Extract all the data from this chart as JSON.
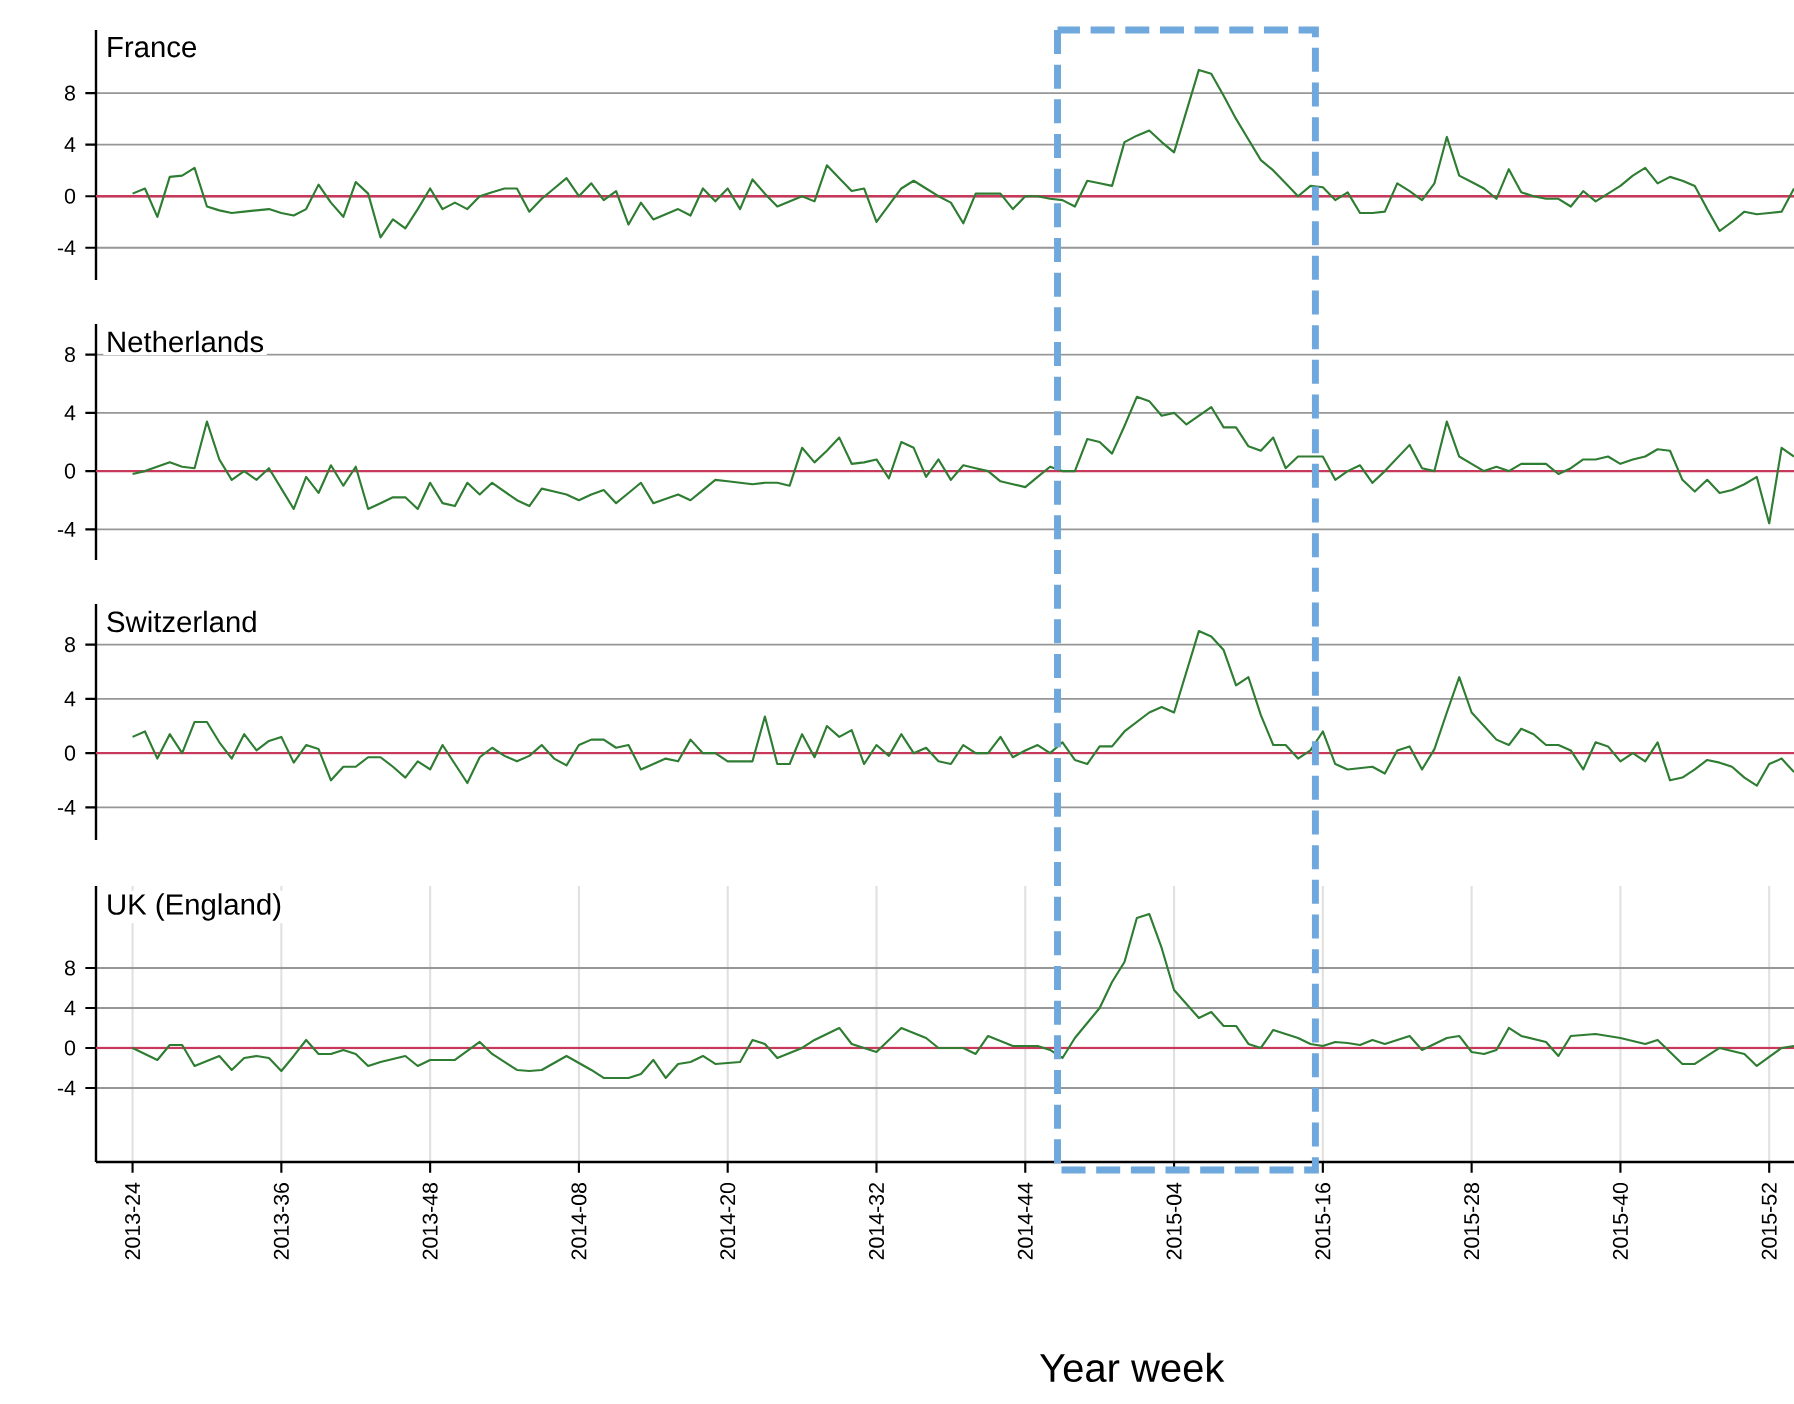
{
  "chart_data": [
    {
      "type": "line",
      "title": "France",
      "ylim": [
        -6.5,
        12.9
      ],
      "yticks": [
        -4,
        0,
        4,
        8
      ],
      "grid": true,
      "tick_labels": "y",
      "categories": [
        "2013-24",
        null,
        null,
        null,
        null,
        null,
        null,
        null,
        null,
        null,
        null,
        null,
        "2013-36",
        null,
        null,
        null,
        null,
        null,
        null,
        null,
        null,
        null,
        null,
        null,
        "2013-48",
        null,
        null,
        null,
        null,
        null,
        null,
        null,
        null,
        null,
        null,
        null,
        "2014-08",
        null,
        null,
        null,
        null,
        null,
        null,
        null,
        null,
        null,
        null,
        null,
        "2014-20",
        null,
        null,
        null,
        null,
        null,
        null,
        null,
        null,
        null,
        null,
        null,
        "2014-32",
        null,
        null,
        null,
        null,
        null,
        null,
        null,
        null,
        null,
        null,
        null,
        "2014-44",
        null,
        null,
        null,
        null,
        null,
        null,
        null,
        null,
        null,
        null,
        null,
        "2015-04",
        null,
        null,
        null,
        null,
        null,
        null,
        null,
        null,
        null,
        null,
        null,
        "2015-16",
        null,
        null,
        null,
        null,
        null,
        null,
        null,
        null,
        null,
        null,
        null,
        "2015-28",
        null,
        null,
        null,
        null,
        null,
        null,
        null,
        null,
        null,
        null,
        null,
        "2015-40",
        null,
        null,
        null,
        null,
        null,
        null,
        null,
        null,
        null,
        null,
        null,
        "2015-52",
        null,
        null
      ],
      "ref_lines": [
        {
          "axis": "y",
          "value": 0,
          "color": "#c8385a"
        }
      ],
      "series": [
        {
          "color": "#2e7d32",
          "values": [
            0.2,
            0.6,
            -1.6,
            1.5,
            1.6,
            2.2,
            -0.8,
            -1.1,
            -1.3,
            -1.2,
            -1.1,
            -1.0,
            -1.3,
            -1.5,
            -1.0,
            0.9,
            -0.5,
            -1.6,
            1.1,
            0.2,
            -3.2,
            -1.8,
            -2.5,
            -1.0,
            0.6,
            -1.0,
            -0.5,
            -1.0,
            0.0,
            0.3,
            0.6,
            0.6,
            -1.2,
            -0.2,
            0.6,
            1.4,
            0.0,
            1.0,
            -0.3,
            0.4,
            -2.2,
            -0.5,
            -1.8,
            -1.4,
            -1.0,
            -1.5,
            0.6,
            -0.4,
            0.6,
            -1.0,
            1.3,
            0.2,
            -0.8,
            -0.4,
            0.0,
            -0.4,
            2.4,
            1.4,
            0.4,
            0.6,
            -2.0,
            -0.7,
            0.6,
            1.2,
            0.6,
            0.0,
            -0.5,
            -2.1,
            0.2,
            0.2,
            0.2,
            -1.0,
            0.0,
            0.0,
            -0.2,
            -0.3,
            -0.8,
            1.2,
            1.0,
            0.8,
            4.2,
            4.7,
            5.1,
            4.2,
            3.4,
            6.6,
            9.8,
            9.5,
            7.8,
            6.0,
            4.4,
            2.8,
            2.0,
            1.0,
            0.0,
            0.8,
            0.7,
            -0.3,
            0.3,
            -1.3,
            -1.3,
            -1.2,
            1.0,
            0.4,
            -0.3,
            1.0,
            4.6,
            1.6,
            1.1,
            0.6,
            -0.2,
            2.1,
            0.3,
            0.0,
            -0.2,
            -0.2,
            -0.8,
            0.4,
            -0.4,
            0.2,
            0.8,
            1.6,
            2.2,
            1.0,
            1.5,
            1.2,
            0.8,
            -1.0,
            -2.7,
            -2.0,
            -1.2,
            -1.4,
            -1.3,
            -1.2,
            0.6
          ]
        }
      ]
    },
    {
      "type": "line",
      "title": "Netherlands",
      "ylim": [
        -6.1,
        10.1
      ],
      "yticks": [
        -4,
        0,
        4,
        8
      ],
      "grid": true,
      "tick_labels": "y",
      "categories": [
        "2013-24",
        null,
        null,
        null,
        null,
        null,
        null,
        null,
        null,
        null,
        null,
        null,
        "2013-36",
        null,
        null,
        null,
        null,
        null,
        null,
        null,
        null,
        null,
        null,
        null,
        "2013-48",
        null,
        null,
        null,
        null,
        null,
        null,
        null,
        null,
        null,
        null,
        null,
        "2014-08",
        null,
        null,
        null,
        null,
        null,
        null,
        null,
        null,
        null,
        null,
        null,
        "2014-20",
        null,
        null,
        null,
        null,
        null,
        null,
        null,
        null,
        null,
        null,
        null,
        "2014-32",
        null,
        null,
        null,
        null,
        null,
        null,
        null,
        null,
        null,
        null,
        null,
        "2014-44",
        null,
        null,
        null,
        null,
        null,
        null,
        null,
        null,
        null,
        null,
        null,
        "2015-04",
        null,
        null,
        null,
        null,
        null,
        null,
        null,
        null,
        null,
        null,
        null,
        "2015-16",
        null,
        null,
        null,
        null,
        null,
        null,
        null,
        null,
        null,
        null,
        null,
        "2015-28",
        null,
        null,
        null,
        null,
        null,
        null,
        null,
        null,
        null,
        null,
        null,
        "2015-40",
        null,
        null,
        null,
        null,
        null,
        null,
        null,
        null,
        null,
        null,
        null,
        "2015-52",
        null,
        null
      ],
      "ref_lines": [
        {
          "axis": "y",
          "value": 0,
          "color": "#c8385a"
        }
      ],
      "series": [
        {
          "color": "#2e7d32",
          "values": [
            -0.2,
            0.0,
            0.3,
            0.6,
            0.3,
            0.2,
            3.4,
            0.8,
            -0.6,
            0.0,
            -0.6,
            0.2,
            -1.2,
            -2.6,
            -0.4,
            -1.5,
            0.4,
            -1.0,
            0.3,
            -2.6,
            -2.2,
            -1.8,
            -1.8,
            -2.6,
            -0.8,
            -2.2,
            -2.4,
            -0.8,
            -1.6,
            -0.8,
            -1.4,
            -2.0,
            -2.4,
            -1.2,
            -1.4,
            -1.6,
            -2.0,
            -1.6,
            -1.3,
            -2.2,
            -1.5,
            -0.8,
            -2.2,
            -1.9,
            -1.6,
            -2.0,
            -1.3,
            -0.6,
            -0.7,
            -0.8,
            -0.9,
            -0.8,
            -0.8,
            -1.0,
            1.6,
            0.6,
            1.4,
            2.3,
            0.5,
            0.6,
            0.8,
            -0.5,
            2.0,
            1.6,
            -0.4,
            0.8,
            -0.6,
            0.4,
            0.2,
            0.0,
            -0.7,
            -0.9,
            -1.1,
            -0.4,
            0.3,
            0.0,
            0.0,
            2.2,
            2.0,
            1.2,
            3.1,
            5.1,
            4.8,
            3.8,
            4.0,
            3.2,
            3.8,
            4.4,
            3.0,
            3.0,
            1.7,
            1.4,
            2.3,
            0.2,
            1.0,
            1.0,
            1.0,
            -0.6,
            0.0,
            0.4,
            -0.8,
            0.0,
            0.9,
            1.8,
            0.2,
            0.0,
            3.4,
            1.0,
            0.5,
            0.0,
            0.3,
            0.0,
            0.5,
            0.5,
            0.5,
            -0.2,
            0.2,
            0.8,
            0.8,
            1.0,
            0.5,
            0.8,
            1.0,
            1.5,
            1.4,
            -0.6,
            -1.4,
            -0.6,
            -1.5,
            -1.3,
            -0.9,
            -0.4,
            -3.6,
            1.6,
            1.0
          ]
        }
      ]
    },
    {
      "type": "line",
      "title": "Switzerland",
      "ylim": [
        -6.4,
        11
      ],
      "yticks": [
        -4,
        0,
        4,
        8
      ],
      "grid": true,
      "tick_labels": "y",
      "categories": [
        "2013-24",
        null,
        null,
        null,
        null,
        null,
        null,
        null,
        null,
        null,
        null,
        null,
        "2013-36",
        null,
        null,
        null,
        null,
        null,
        null,
        null,
        null,
        null,
        null,
        null,
        "2013-48",
        null,
        null,
        null,
        null,
        null,
        null,
        null,
        null,
        null,
        null,
        null,
        "2014-08",
        null,
        null,
        null,
        null,
        null,
        null,
        null,
        null,
        null,
        null,
        null,
        "2014-20",
        null,
        null,
        null,
        null,
        null,
        null,
        null,
        null,
        null,
        null,
        null,
        "2014-32",
        null,
        null,
        null,
        null,
        null,
        null,
        null,
        null,
        null,
        null,
        null,
        "2014-44",
        null,
        null,
        null,
        null,
        null,
        null,
        null,
        null,
        null,
        null,
        null,
        "2015-04",
        null,
        null,
        null,
        null,
        null,
        null,
        null,
        null,
        null,
        null,
        null,
        "2015-16",
        null,
        null,
        null,
        null,
        null,
        null,
        null,
        null,
        null,
        null,
        null,
        "2015-28",
        null,
        null,
        null,
        null,
        null,
        null,
        null,
        null,
        null,
        null,
        null,
        "2015-40",
        null,
        null,
        null,
        null,
        null,
        null,
        null,
        null,
        null,
        null,
        null,
        "2015-52",
        null,
        null
      ],
      "ref_lines": [
        {
          "axis": "y",
          "value": 0,
          "color": "#c8385a"
        }
      ],
      "series": [
        {
          "color": "#2e7d32",
          "values": [
            1.2,
            1.6,
            -0.4,
            1.4,
            0.0,
            2.3,
            2.3,
            0.8,
            -0.4,
            1.4,
            0.2,
            0.9,
            1.2,
            -0.7,
            0.6,
            0.3,
            -2.0,
            -1.0,
            -1.0,
            -0.3,
            -0.3,
            -1.0,
            -1.8,
            -0.6,
            -1.2,
            0.6,
            -0.8,
            -2.2,
            -0.3,
            0.4,
            -0.2,
            -0.6,
            -0.2,
            0.6,
            -0.4,
            -0.9,
            0.6,
            1.0,
            1.0,
            0.4,
            0.6,
            -1.2,
            -0.8,
            -0.4,
            -0.6,
            1.0,
            0.0,
            0.0,
            -0.6,
            -0.6,
            -0.6,
            2.7,
            -0.8,
            -0.8,
            1.4,
            -0.3,
            2.0,
            1.2,
            1.7,
            -0.8,
            0.6,
            -0.2,
            1.4,
            0.0,
            0.4,
            -0.6,
            -0.8,
            0.6,
            0.0,
            0.0,
            1.2,
            -0.3,
            0.2,
            0.6,
            0.0,
            0.8,
            -0.5,
            -0.8,
            0.5,
            0.5,
            1.6,
            2.3,
            3.0,
            3.4,
            3.0,
            6.0,
            9.0,
            8.6,
            7.6,
            5.0,
            5.6,
            2.8,
            0.6,
            0.6,
            -0.4,
            0.2,
            1.6,
            -0.8,
            -1.2,
            -1.1,
            -1.0,
            -1.5,
            0.2,
            0.5,
            -1.2,
            0.3,
            3.0,
            5.6,
            3.0,
            2.0,
            1.0,
            0.6,
            1.8,
            1.4,
            0.6,
            0.6,
            0.2,
            -1.2,
            0.8,
            0.5,
            -0.6,
            0.0,
            -0.6,
            0.8,
            -2.0,
            -1.8,
            -1.2,
            -0.5,
            -0.7,
            -1.0,
            -1.8,
            -2.4,
            -0.8,
            -0.4,
            -1.4
          ]
        }
      ]
    },
    {
      "type": "line",
      "title": "UK (England)",
      "xlabel": "Year week",
      "ylim": [
        -11.4,
        16.2
      ],
      "yticks": [
        -4,
        0,
        4,
        8
      ],
      "grid": true,
      "categories": [
        "2013-24",
        null,
        null,
        null,
        null,
        null,
        null,
        null,
        null,
        null,
        null,
        null,
        "2013-36",
        null,
        null,
        null,
        null,
        null,
        null,
        null,
        null,
        null,
        null,
        null,
        "2013-48",
        null,
        null,
        null,
        null,
        null,
        null,
        null,
        null,
        null,
        null,
        null,
        "2014-08",
        null,
        null,
        null,
        null,
        null,
        null,
        null,
        null,
        null,
        null,
        null,
        "2014-20",
        null,
        null,
        null,
        null,
        null,
        null,
        null,
        null,
        null,
        null,
        null,
        "2014-32",
        null,
        null,
        null,
        null,
        null,
        null,
        null,
        null,
        null,
        null,
        null,
        "2014-44",
        null,
        null,
        null,
        null,
        null,
        null,
        null,
        null,
        null,
        null,
        null,
        "2015-04",
        null,
        null,
        null,
        null,
        null,
        null,
        null,
        null,
        null,
        null,
        null,
        "2015-16",
        null,
        null,
        null,
        null,
        null,
        null,
        null,
        null,
        null,
        null,
        null,
        "2015-28",
        null,
        null,
        null,
        null,
        null,
        null,
        null,
        null,
        null,
        null,
        null,
        "2015-40",
        null,
        null,
        null,
        null,
        null,
        null,
        null,
        null,
        null,
        null,
        null,
        "2015-52",
        null,
        null
      ],
      "ref_lines": [
        {
          "axis": "y",
          "value": 0,
          "color": "#c8385a"
        }
      ],
      "series": [
        {
          "color": "#2e7d32",
          "values": [
            0.0,
            -0.6,
            -1.2,
            0.3,
            0.3,
            -1.8,
            -1.3,
            -0.8,
            -2.2,
            -1.0,
            -0.8,
            -1.0,
            -2.3,
            -0.8,
            0.8,
            -0.6,
            -0.6,
            -0.2,
            -0.6,
            -1.8,
            -1.4,
            -1.1,
            -0.8,
            -1.8,
            -1.2,
            -1.2,
            -1.2,
            -0.3,
            0.6,
            -0.6,
            -1.4,
            -2.2,
            -2.3,
            -2.2,
            -1.5,
            -0.8,
            -1.5,
            -2.2,
            -3.0,
            -3.0,
            -3.0,
            -2.6,
            -1.2,
            -3.0,
            -1.6,
            -1.4,
            -0.8,
            -1.6,
            -1.5,
            -1.4,
            0.8,
            0.4,
            -1.0,
            -0.5,
            0.0,
            0.8,
            1.4,
            2.0,
            0.4,
            0.0,
            -0.4,
            0.8,
            2.0,
            1.5,
            1.0,
            0.0,
            0.0,
            0.0,
            -0.6,
            1.2,
            0.7,
            0.2,
            0.2,
            0.2,
            -0.2,
            -1.0,
            1.0,
            2.5,
            4.0,
            6.6,
            8.6,
            13.0,
            13.4,
            10.0,
            5.8,
            4.4,
            3.0,
            3.6,
            2.2,
            2.2,
            0.4,
            0.0,
            1.8,
            1.4,
            1.0,
            0.4,
            0.2,
            0.6,
            0.5,
            0.3,
            0.8,
            0.4,
            0.8,
            1.2,
            -0.2,
            0.4,
            1.0,
            1.2,
            -0.4,
            -0.6,
            -0.2,
            2.0,
            1.2,
            0.9,
            0.6,
            -0.8,
            1.2,
            1.3,
            1.4,
            1.2,
            1.0,
            0.7,
            0.4,
            0.8,
            -0.4,
            -1.6,
            -1.6,
            -0.8,
            0.0,
            -0.3,
            -0.6,
            -1.8,
            -0.9,
            0.0,
            0.2
          ]
        }
      ]
    }
  ]
}
